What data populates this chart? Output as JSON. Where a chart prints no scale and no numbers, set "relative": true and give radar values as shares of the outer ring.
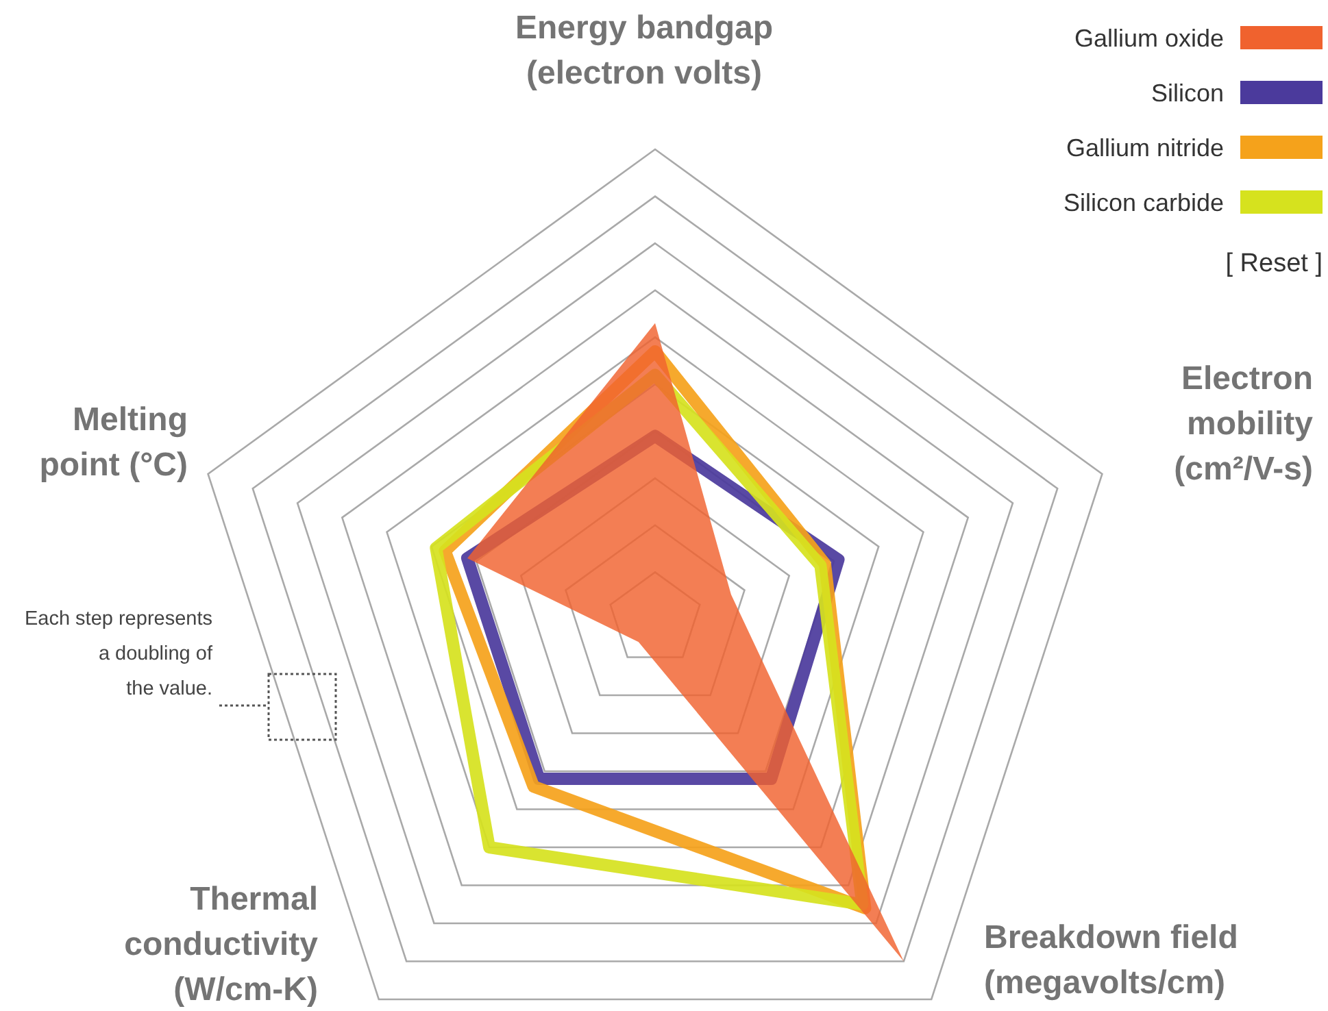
{
  "chart_data": {
    "type": "radar",
    "relative": true,
    "grid": true,
    "legend": "top right",
    "categories": [
      "Energy bandgap\n(electron volts)",
      "Electron\nmobility\n(cm²/V-s)",
      "Breakdown field\n(megavolts/cm)",
      "Thermal\nconductivity\n(W/cm-K)",
      "Melting\npoint (°C)"
    ],
    "series": [
      {
        "name": "Gallium oxide",
        "color": "#f0622e",
        "type": "area",
        "values": [
          0.63,
          0.17,
          0.9,
          0.06,
          0.42
        ]
      },
      {
        "name": "Silicon",
        "color": "#4b3a9c",
        "values": [
          0.39,
          0.41,
          0.42,
          0.42,
          0.42
        ]
      },
      {
        "name": "Gallium nitride",
        "color": "#f5a21b",
        "values": [
          0.57,
          0.38,
          0.76,
          0.44,
          0.47
        ]
      },
      {
        "name": "Silicon carbide",
        "color": "#d6e21e",
        "values": [
          0.52,
          0.37,
          0.75,
          0.6,
          0.49
        ]
      }
    ],
    "annotations": [
      "Each step represents\na doubling of\nthe value.",
      "[ Reset ]"
    ]
  }
}
